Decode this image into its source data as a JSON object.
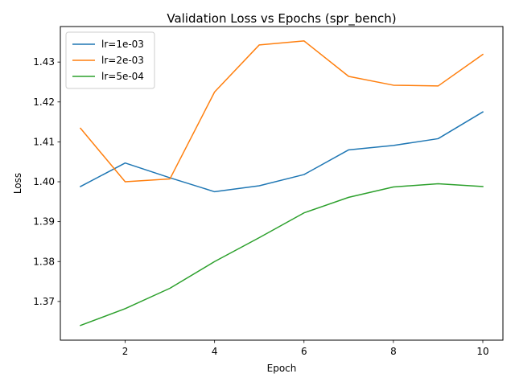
{
  "chart_data": {
    "type": "line",
    "title": "Validation Loss vs Epochs (spr_bench)",
    "xlabel": "Epoch",
    "ylabel": "Loss",
    "x": [
      1,
      2,
      3,
      4,
      5,
      6,
      7,
      8,
      9,
      10
    ],
    "xlim": [
      0.55,
      10.45
    ],
    "ylim": [
      1.3603,
      1.4389
    ],
    "xticks": [
      2,
      4,
      6,
      8,
      10
    ],
    "yticks": [
      1.37,
      1.38,
      1.39,
      1.4,
      1.41,
      1.42,
      1.43
    ],
    "ytick_labels": [
      "1.37",
      "1.38",
      "1.39",
      "1.40",
      "1.41",
      "1.42",
      "1.43"
    ],
    "grid": false,
    "legend_position": "upper-left",
    "series": [
      {
        "name": "lr=1e-03",
        "color": "#1f77b4",
        "values": [
          1.3988,
          1.4047,
          1.401,
          1.3975,
          1.399,
          1.4018,
          1.408,
          1.4091,
          1.4108,
          1.4175
        ]
      },
      {
        "name": "lr=2e-03",
        "color": "#ff7f0e",
        "values": [
          1.4134,
          1.4,
          1.4007,
          1.4225,
          1.4343,
          1.4353,
          1.4264,
          1.4242,
          1.424,
          1.4319
        ]
      },
      {
        "name": "lr=5e-04",
        "color": "#2ca02c",
        "values": [
          1.364,
          1.3682,
          1.3733,
          1.38,
          1.386,
          1.3922,
          1.3961,
          1.3987,
          1.3995,
          1.3988
        ]
      }
    ]
  }
}
